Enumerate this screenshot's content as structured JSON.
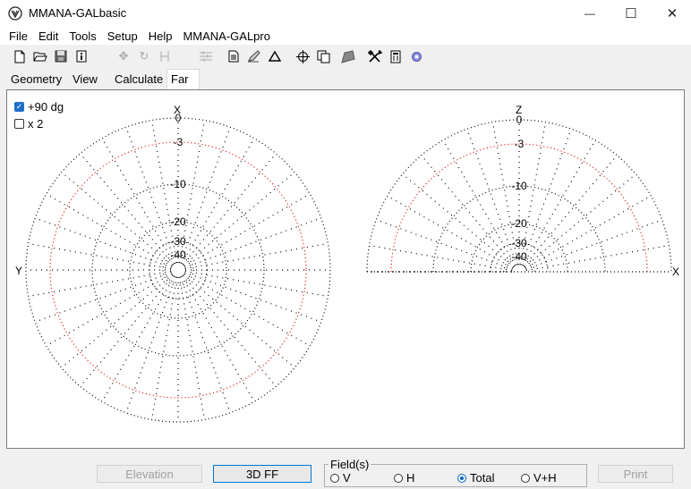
{
  "window": {
    "title": "MMANA-GALbasic",
    "minimize_glyph": "—",
    "maximize_glyph": "☐",
    "close_glyph": "✕"
  },
  "menu": [
    "File",
    "Edit",
    "Tools",
    "Setup",
    "Help",
    "MMANA-GALpro"
  ],
  "toolbar_icons": [
    "new-file-icon",
    "open-folder-icon",
    "save-icon",
    "info-icon",
    "move-icon",
    "rotate-icon",
    "stretch-icon",
    "align-icon",
    "document-icon",
    "pen-icon",
    "triangle-icon",
    "crosshair-icon",
    "copy-icon",
    "shape-icon",
    "tools-icon",
    "calculator-icon",
    "gear-icon"
  ],
  "tabs": {
    "geometry": "Geometry",
    "view": "View",
    "calculation": "Calculate",
    "far_field": "Far field plots"
  },
  "options": {
    "plus90": {
      "label": "+90 dg",
      "checked": true
    },
    "x2": {
      "label": "x 2",
      "checked": false
    }
  },
  "plots": {
    "horizontal": {
      "axis_top": "X",
      "axis_left": "Y"
    },
    "vertical": {
      "axis_top": "Z",
      "axis_right": "X"
    },
    "ring_labels": [
      "0",
      "-3",
      "-10",
      "-20",
      "-30",
      "-40"
    ]
  },
  "bottom": {
    "elevation": "Elevation",
    "ff3d": "3D FF",
    "print": "Print",
    "fields_legend": "Field(s)",
    "field_options": [
      {
        "label": "V",
        "selected": false
      },
      {
        "label": "H",
        "selected": false
      },
      {
        "label": "Total",
        "selected": true
      },
      {
        "label": "V+H",
        "selected": false
      }
    ]
  },
  "colors": {
    "grid": "#000000",
    "minus3_ring": "#e00000",
    "accent": "#0067c0"
  }
}
